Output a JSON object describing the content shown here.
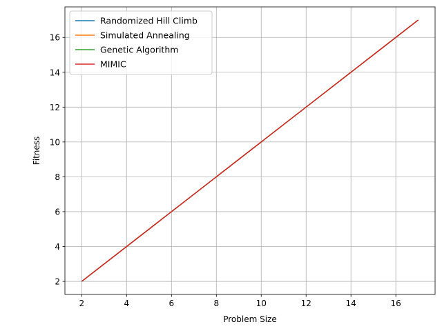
{
  "chart_data": {
    "type": "line",
    "x": [
      2,
      3,
      4,
      5,
      6,
      7,
      8,
      9,
      10,
      11,
      12,
      13,
      14,
      15,
      16,
      17
    ],
    "series": [
      {
        "name": "Randomized Hill Climb",
        "color": "#1f77b4",
        "values": [
          2,
          3,
          4,
          5,
          6,
          7,
          8,
          9,
          10,
          11,
          12,
          13,
          14,
          15,
          16,
          17
        ]
      },
      {
        "name": "Simulated Annealing",
        "color": "#ff7f0e",
        "values": [
          2,
          3,
          4,
          5,
          6,
          7,
          8,
          9,
          10,
          11,
          12,
          13,
          14,
          15,
          16,
          17
        ]
      },
      {
        "name": "Genetic Algorithm",
        "color": "#2ca02c",
        "values": [
          2,
          3,
          4,
          5,
          6,
          7,
          8,
          9,
          10,
          11,
          12,
          13,
          14,
          15,
          16,
          17
        ]
      },
      {
        "name": "MIMIC",
        "color": "#d62728",
        "values": [
          2,
          3,
          4,
          5,
          6,
          7,
          8,
          9,
          10,
          11,
          12,
          13,
          14,
          15,
          16,
          17
        ]
      }
    ],
    "xlabel": "Problem Size",
    "ylabel": "Fitness",
    "xlim": [
      1.25,
      17.75
    ],
    "ylim": [
      1.25,
      17.75
    ],
    "xticks": [
      2,
      4,
      6,
      8,
      10,
      12,
      14,
      16
    ],
    "yticks": [
      2,
      4,
      6,
      8,
      10,
      12,
      14,
      16
    ],
    "grid": true,
    "legend_position": "top-left"
  }
}
